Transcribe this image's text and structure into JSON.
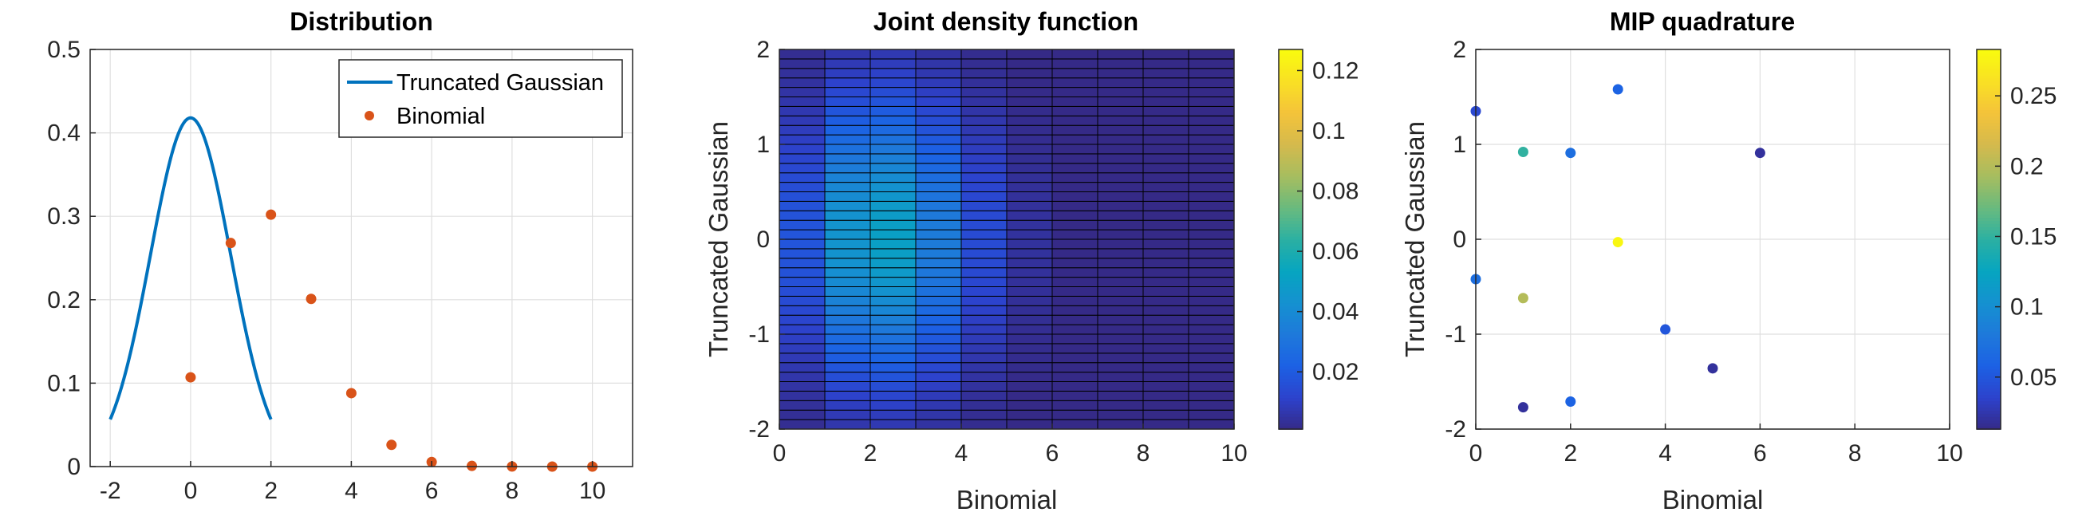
{
  "chart_data": [
    {
      "type": "line+scatter",
      "title": "Distribution",
      "xlabel": "",
      "ylabel": "",
      "xlim": [
        -2.5,
        11
      ],
      "ylim": [
        0,
        0.5
      ],
      "xticks": [
        "-2",
        "0",
        "2",
        "4",
        "6",
        "8",
        "10"
      ],
      "yticks": [
        "0",
        "0.1",
        "0.2",
        "0.3",
        "0.4",
        "0.5"
      ],
      "grid": true,
      "legend_position": "top-right",
      "series": [
        {
          "name": "Truncated Gaussian",
          "kind": "line",
          "color": "#0072BD",
          "distribution": {
            "mean": 0,
            "sd": 1,
            "lower": -2,
            "upper": 2
          }
        },
        {
          "name": "Binomial",
          "kind": "scatter",
          "color": "#D95319",
          "x": [
            0,
            1,
            2,
            3,
            4,
            5,
            6,
            7,
            8,
            9,
            10
          ],
          "y": [
            0.107,
            0.268,
            0.302,
            0.201,
            0.088,
            0.026,
            0.0055,
            0.0008,
            0.0001,
            0.0,
            0.0
          ]
        }
      ]
    },
    {
      "type": "heatmap",
      "title": "Joint density function",
      "xlabel": "Binomial",
      "ylabel": "Truncated Gaussian",
      "xlim": [
        0,
        10
      ],
      "ylim": [
        -2,
        2
      ],
      "xticks": [
        "0",
        "2",
        "4",
        "6",
        "8",
        "10"
      ],
      "yticks": [
        "-2",
        "-1",
        "0",
        "1",
        "2"
      ],
      "x_edges": [
        0,
        1,
        2,
        3,
        4,
        5,
        6,
        7,
        8,
        9,
        10
      ],
      "y_cells": 40,
      "column_weights": [
        0.107,
        0.268,
        0.302,
        0.201,
        0.088,
        0.026,
        0.0055,
        0.0008,
        0.0001,
        0.0,
        0.0
      ],
      "row_density": {
        "mean": 0,
        "sd": 1,
        "lower": -2,
        "upper": 2
      },
      "colorbar": {
        "range": [
          0.001,
          0.127
        ],
        "ticks": [
          "0.02",
          "0.04",
          "0.06",
          "0.08",
          "0.1",
          "0.12"
        ]
      }
    },
    {
      "type": "scatter",
      "title": "MIP quadrature",
      "xlabel": "Binomial",
      "ylabel": "Truncated Gaussian",
      "xlim": [
        0,
        10
      ],
      "ylim": [
        -2,
        2
      ],
      "xticks": [
        "0",
        "2",
        "4",
        "6",
        "8",
        "10"
      ],
      "yticks": [
        "-2",
        "-1",
        "0",
        "1",
        "2"
      ],
      "grid": true,
      "points": [
        {
          "x": 0,
          "y": 1.35,
          "w": 0.04
        },
        {
          "x": 0,
          "y": -0.42,
          "w": 0.07
        },
        {
          "x": 1,
          "y": 0.92,
          "w": 0.15
        },
        {
          "x": 1,
          "y": -0.62,
          "w": 0.2
        },
        {
          "x": 1,
          "y": -1.77,
          "w": 0.02
        },
        {
          "x": 2,
          "y": 0.91,
          "w": 0.07
        },
        {
          "x": 2,
          "y": -1.71,
          "w": 0.06
        },
        {
          "x": 3,
          "y": 1.58,
          "w": 0.06
        },
        {
          "x": 3,
          "y": -0.03,
          "w": 0.28
        },
        {
          "x": 4,
          "y": -0.95,
          "w": 0.05
        },
        {
          "x": 5,
          "y": -1.36,
          "w": 0.02
        },
        {
          "x": 6,
          "y": 0.91,
          "w": 0.02
        }
      ],
      "colorbar": {
        "range": [
          0.013,
          0.283
        ],
        "ticks": [
          "0.05",
          "0.1",
          "0.15",
          "0.2",
          "0.25"
        ]
      }
    }
  ],
  "colors": {
    "axis": "#262626",
    "grid": "#dfdfdf",
    "line": "#0072BD",
    "marker": "#D95319",
    "parula": [
      "#352A87",
      "#2D42CC",
      "#1C61E4",
      "#1E79DA",
      "#1591D0",
      "#06A5C0",
      "#2BB0A3",
      "#69BA7E",
      "#A6BD5F",
      "#D4BA4D",
      "#F4C33A",
      "#F9E024",
      "#F9FB0E"
    ]
  }
}
